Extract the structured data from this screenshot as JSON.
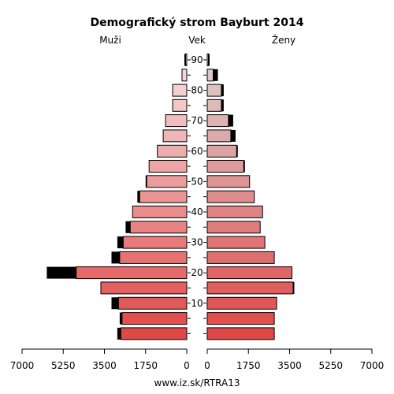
{
  "chart_data": {
    "type": "bar",
    "title": "Demografický strom Bayburt 2014",
    "left_label": "Muži",
    "center_label": "Vek",
    "right_label": "Ženy",
    "footer": "www.iz.sk/RTRA13",
    "xlim": [
      0,
      7000
    ],
    "x_ticks": [
      "7000",
      "5250",
      "3500",
      "1750",
      "0",
      "0",
      "1750",
      "3500",
      "5250",
      "7000"
    ],
    "age_ticks": [
      "10",
      "20",
      "30",
      "40",
      "50",
      "60",
      "70",
      "80",
      "90"
    ],
    "age_groups": [
      "0-4",
      "5-9",
      "10-14",
      "15-19",
      "20-24",
      "25-29",
      "30-34",
      "35-39",
      "40-44",
      "45-49",
      "50-54",
      "55-59",
      "60-64",
      "65-69",
      "70-74",
      "75-79",
      "80-84",
      "85-89",
      "90+"
    ],
    "series": [
      {
        "name": "Muži",
        "values": [
          2800,
          2750,
          2900,
          3650,
          4700,
          2850,
          2700,
          2400,
          2300,
          2000,
          1700,
          1600,
          1250,
          1000,
          900,
          600,
          600,
          200,
          50
        ],
        "excess": [
          150,
          100,
          300,
          0,
          1250,
          350,
          250,
          200,
          0,
          100,
          50,
          0,
          0,
          0,
          0,
          0,
          0,
          0,
          50
        ]
      },
      {
        "name": "Ženy",
        "values": [
          2850,
          2850,
          2950,
          3650,
          3600,
          2850,
          2450,
          2250,
          2350,
          2000,
          1800,
          1550,
          1250,
          1000,
          900,
          600,
          600,
          250,
          50
        ],
        "excess": [
          0,
          0,
          0,
          50,
          0,
          0,
          0,
          0,
          0,
          0,
          0,
          50,
          50,
          200,
          200,
          100,
          100,
          200,
          50
        ]
      }
    ]
  }
}
